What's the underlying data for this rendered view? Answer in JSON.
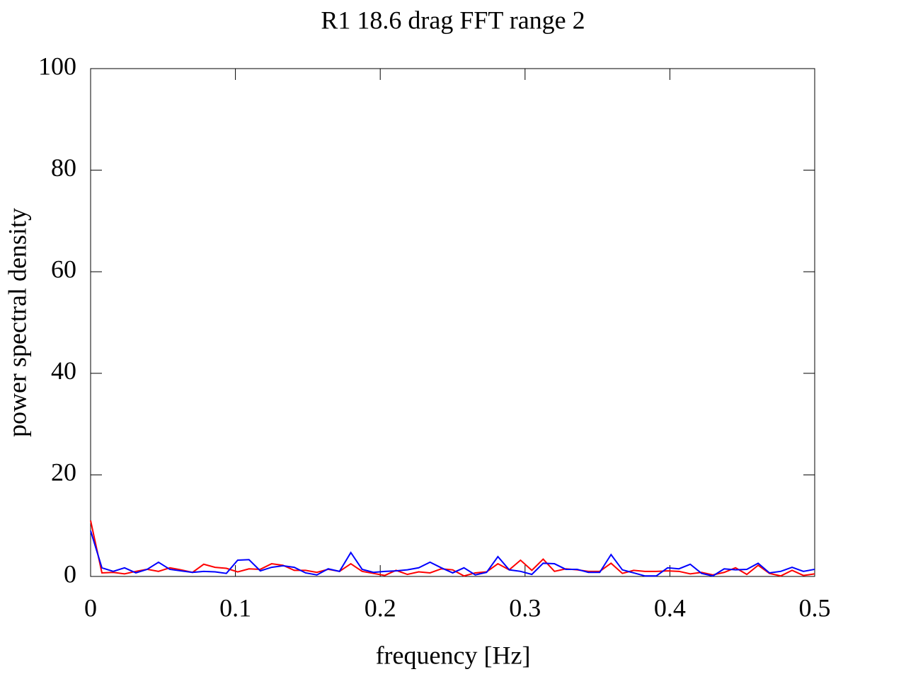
{
  "chart_data": {
    "type": "line",
    "title": "R1 18.6 drag FFT range 2",
    "xlabel": "frequency [Hz]",
    "ylabel": "power spectral density",
    "x": [
      0,
      0.0078125,
      0.015625,
      0.0234375,
      0.03125,
      0.0390625,
      0.046875,
      0.0546875,
      0.0625,
      0.0703125,
      0.078125,
      0.0859375,
      0.09375,
      0.1015625,
      0.109375,
      0.1171875,
      0.125,
      0.1328125,
      0.140625,
      0.1484375,
      0.15625,
      0.1640625,
      0.171875,
      0.1796875,
      0.1875,
      0.1953125,
      0.203125,
      0.2109375,
      0.21875,
      0.2265625,
      0.234375,
      0.2421875,
      0.25,
      0.2578125,
      0.265625,
      0.2734375,
      0.28125,
      0.2890625,
      0.296875,
      0.3046875,
      0.3125,
      0.3203125,
      0.328125,
      0.3359375,
      0.34375,
      0.3515625,
      0.359375,
      0.3671875,
      0.375,
      0.3828125,
      0.390625,
      0.3984375,
      0.40625,
      0.4140625,
      0.421875,
      0.4296875,
      0.4375,
      0.4453125,
      0.453125,
      0.4609375,
      0.46875,
      0.4765625,
      0.484375,
      0.4921875,
      0.5
    ],
    "series": [
      {
        "color": "#ff0000",
        "values": [
          11,
          0.7,
          0.8,
          0.5,
          1.0,
          1.4,
          1.0,
          1.7,
          1.3,
          0.8,
          2.4,
          1.8,
          1.6,
          0.9,
          1.5,
          1.4,
          2.5,
          2.2,
          1.2,
          1.2,
          0.8,
          1.4,
          1.0,
          2.5,
          1.0,
          0.6,
          0.2,
          1.2,
          0.4,
          0.9,
          0.7,
          1.5,
          1.3,
          0.1,
          0.7,
          0.9,
          2.5,
          1.3,
          3.2,
          1.2,
          3.4,
          1.0,
          1.5,
          1.3,
          1.0,
          1.0,
          2.6,
          0.6,
          1.2,
          1.0,
          1.0,
          1.1,
          1.0,
          0.5,
          0.8,
          0.3,
          0.8,
          1.7,
          0.4,
          2.2,
          0.6,
          0.1,
          1.2,
          0.2,
          0.5
        ]
      },
      {
        "color": "#0000ff",
        "values": [
          9,
          1.7,
          1.0,
          1.7,
          0.7,
          1.4,
          2.8,
          1.4,
          1.1,
          0.8,
          1.0,
          0.9,
          0.6,
          3.2,
          3.3,
          1.1,
          1.8,
          2.1,
          1.8,
          0.7,
          0.3,
          1.5,
          1.0,
          4.7,
          1.4,
          0.8,
          1.0,
          1.1,
          1.3,
          1.7,
          2.8,
          1.7,
          0.7,
          1.7,
          0.3,
          0.8,
          3.9,
          1.3,
          1.0,
          0.4,
          2.6,
          2.5,
          1.4,
          1.4,
          0.8,
          0.8,
          4.3,
          1.3,
          0.7,
          0.1,
          0.1,
          1.7,
          1.5,
          2.4,
          0.6,
          0.1,
          1.5,
          1.3,
          1.4,
          2.6,
          0.7,
          1.0,
          1.8,
          1.0,
          1.4
        ]
      }
    ],
    "xlim": [
      0,
      0.5
    ],
    "xticks": [
      0,
      0.1,
      0.2,
      0.3,
      0.4,
      0.5
    ],
    "ylim": [
      0,
      100
    ],
    "yticks": [
      0,
      20,
      40,
      60,
      80,
      100
    ],
    "grid": false
  }
}
